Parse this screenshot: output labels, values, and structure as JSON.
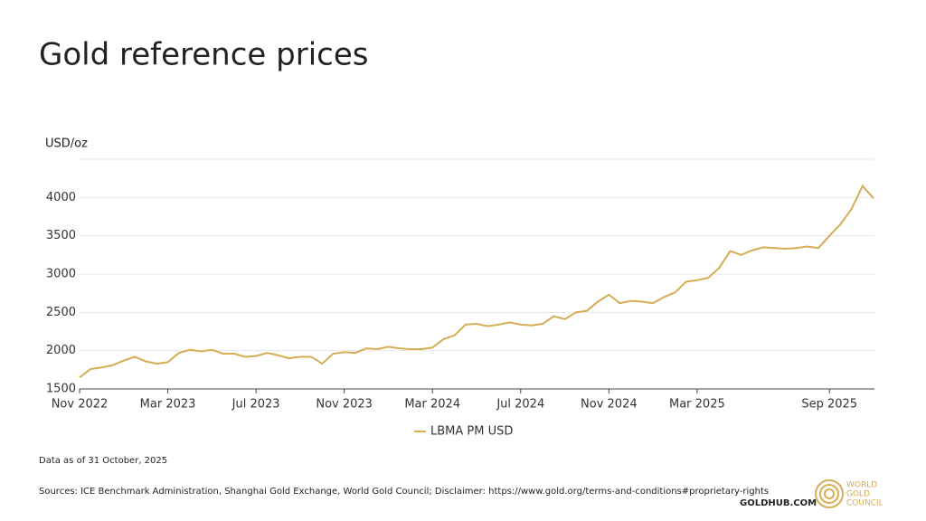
{
  "chart_data": {
    "type": "line",
    "title": "Gold reference prices",
    "y_label": "USD/oz",
    "categories": [
      "Nov 2022",
      null,
      null,
      null,
      null,
      null,
      null,
      null,
      "Mar 2023",
      null,
      null,
      null,
      null,
      null,
      null,
      null,
      "Jul 2023",
      null,
      null,
      null,
      null,
      null,
      null,
      null,
      "Nov 2023",
      null,
      null,
      null,
      null,
      null,
      null,
      null,
      "Mar 2024",
      null,
      null,
      null,
      null,
      null,
      null,
      null,
      "Jul 2024",
      null,
      null,
      null,
      null,
      null,
      null,
      null,
      "Nov 2024",
      null,
      null,
      null,
      null,
      null,
      null,
      null,
      "Mar 2025",
      null,
      null,
      null,
      null,
      null,
      null,
      null,
      null,
      null,
      null,
      null,
      "Sep 2025",
      null,
      null,
      null,
      null
    ],
    "series": [
      {
        "name": "LBMA PM USD",
        "color": "#d6ad54",
        "values": [
          1650,
          1760,
          1780,
          1810,
          1870,
          1920,
          1860,
          1830,
          1850,
          1970,
          2010,
          1990,
          2010,
          1960,
          1960,
          1920,
          1930,
          1970,
          1940,
          1900,
          1920,
          1920,
          1830,
          1960,
          1980,
          1970,
          2030,
          2020,
          2050,
          2030,
          2020,
          2020,
          2040,
          2150,
          2200,
          2340,
          2350,
          2320,
          2340,
          2370,
          2340,
          2330,
          2350,
          2450,
          2410,
          2500,
          2520,
          2640,
          2730,
          2620,
          2650,
          2640,
          2620,
          2700,
          2760,
          2900,
          2920,
          2950,
          3080,
          3300,
          3250,
          3310,
          3350,
          3340,
          3330,
          3340,
          3360,
          3340,
          3500,
          3650,
          3850,
          4150,
          3990
        ]
      }
    ],
    "ylim": [
      1500,
      4500
    ],
    "yticks": [
      1500,
      2000,
      2500,
      3000,
      3500,
      4000
    ],
    "grid": true,
    "legend": "bottom",
    "note": "Data as of 31 October, 2025",
    "sources": "Sources: ICE Benchmark Administration, Shanghai Gold Exchange, World Gold Council; Disclaimer: https://www.gold.org/terms-and-conditions#proprietary-rights",
    "site": "GOLDHUB.COM",
    "logo": [
      "WORLD",
      "GOLD",
      "COUNCIL"
    ]
  }
}
